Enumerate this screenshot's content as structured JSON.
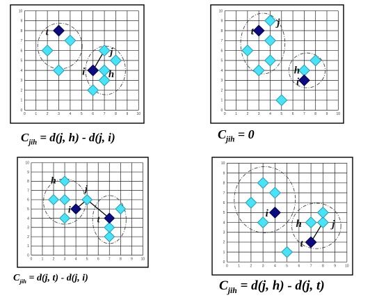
{
  "colors": {
    "light_point_fill": "#47e3f7",
    "light_point_stroke": "#2090a8",
    "dark_point_fill": "#0c0c80",
    "dark_point_stroke": "#00004a"
  },
  "axis_ticks": [
    "0",
    "1",
    "2",
    "3",
    "4",
    "5",
    "6",
    "7",
    "8",
    "9",
    "10"
  ],
  "panels": [
    {
      "formula": {
        "main": "C",
        "sub": "jih",
        "rest": " = d(j, h) - d(j, i)"
      },
      "light_points": [
        [
          2,
          6
        ],
        [
          3,
          4
        ],
        [
          4,
          7
        ],
        [
          6,
          2
        ],
        [
          7,
          3
        ],
        [
          7,
          4
        ],
        [
          7,
          6
        ],
        [
          8,
          5
        ]
      ],
      "dark_points": [
        [
          3,
          8
        ],
        [
          6,
          4
        ]
      ],
      "labels": [
        {
          "text": "t",
          "x": 1.85,
          "y": 7.55
        },
        {
          "text": "i",
          "x": 5.05,
          "y": 3.55
        },
        {
          "text": "j",
          "x": 7.5,
          "y": 5.55
        },
        {
          "text": "h",
          "x": 7.35,
          "y": 3.3
        }
      ],
      "segments": [
        [
          6,
          4,
          7,
          6
        ]
      ],
      "clusters": [
        {
          "cx": 3.1,
          "cy": 6.45,
          "rx": 1.95,
          "ry": 2.3,
          "rot": 0
        },
        {
          "cx": 7.1,
          "cy": 4.0,
          "rx": 1.75,
          "ry": 2.45,
          "rot": 0
        }
      ]
    },
    {
      "formula": {
        "main": "C",
        "sub": "jih",
        "rest": " = 0"
      },
      "light_points": [
        [
          2,
          6
        ],
        [
          3,
          4
        ],
        [
          4,
          5
        ],
        [
          4,
          7
        ],
        [
          4,
          9
        ],
        [
          5,
          1
        ],
        [
          7,
          4
        ],
        [
          8,
          5
        ]
      ],
      "dark_points": [
        [
          3,
          8
        ],
        [
          7,
          3
        ]
      ],
      "labels": [
        {
          "text": "t",
          "x": 2.3,
          "y": 7.6
        },
        {
          "text": "j",
          "x": 4.6,
          "y": 8.5
        },
        {
          "text": "h",
          "x": 6.1,
          "y": 3.7
        },
        {
          "text": "i",
          "x": 6.3,
          "y": 2.55
        }
      ],
      "segments": [],
      "clusters": [
        {
          "cx": 3.35,
          "cy": 6.7,
          "rx": 1.95,
          "ry": 3.05,
          "rot": 0
        },
        {
          "cx": 7.25,
          "cy": 4.0,
          "rx": 1.6,
          "ry": 1.75,
          "rot": 0
        }
      ]
    },
    {
      "formula": {
        "main": "C",
        "sub": "jih",
        "rest": " = d(j, t) - d(j, i)"
      },
      "light_points": [
        [
          2,
          6
        ],
        [
          3,
          4
        ],
        [
          3,
          6
        ],
        [
          3,
          8
        ],
        [
          5,
          6
        ],
        [
          7,
          2
        ],
        [
          7,
          3
        ],
        [
          8,
          5
        ]
      ],
      "dark_points": [
        [
          4,
          5
        ],
        [
          7,
          4
        ]
      ],
      "labels": [
        {
          "text": "h",
          "x": 1.75,
          "y": 7.75
        },
        {
          "text": "i",
          "x": 3.3,
          "y": 4.6
        },
        {
          "text": "j",
          "x": 4.8,
          "y": 6.85
        },
        {
          "text": "t",
          "x": 5.9,
          "y": 3.55
        }
      ],
      "segments": [
        [
          4,
          5,
          5,
          6
        ],
        [
          5,
          6,
          7,
          4
        ]
      ],
      "clusters": [
        {
          "cx": 3.0,
          "cy": 5.8,
          "rx": 1.9,
          "ry": 2.45,
          "rot": 0
        },
        {
          "cx": 7.0,
          "cy": 3.85,
          "rx": 1.5,
          "ry": 2.6,
          "rot": 0
        }
      ]
    },
    {
      "formula": {
        "main": "C",
        "sub": "jih",
        "rest": " = d(j, h) - d(j, t)"
      },
      "light_points": [
        [
          2,
          6
        ],
        [
          3,
          4
        ],
        [
          3,
          8
        ],
        [
          4,
          7
        ],
        [
          5,
          1
        ],
        [
          7,
          4
        ],
        [
          8,
          4
        ],
        [
          8,
          5
        ]
      ],
      "dark_points": [
        [
          4,
          5
        ],
        [
          7,
          2
        ]
      ],
      "labels": [
        {
          "text": "i",
          "x": 3.2,
          "y": 4.6
        },
        {
          "text": "h",
          "x": 5.75,
          "y": 3.55
        },
        {
          "text": "j",
          "x": 8.75,
          "y": 3.5
        },
        {
          "text": "t",
          "x": 6.1,
          "y": 1.55
        }
      ],
      "segments": [
        [
          7,
          2,
          8,
          4
        ]
      ],
      "clusters": [
        {
          "cx": 3.15,
          "cy": 6.3,
          "rx": 2.55,
          "ry": 3.35,
          "rot": 0
        },
        {
          "cx": 7.45,
          "cy": 3.65,
          "rx": 2.05,
          "ry": 2.3,
          "rot": 0
        }
      ]
    }
  ]
}
